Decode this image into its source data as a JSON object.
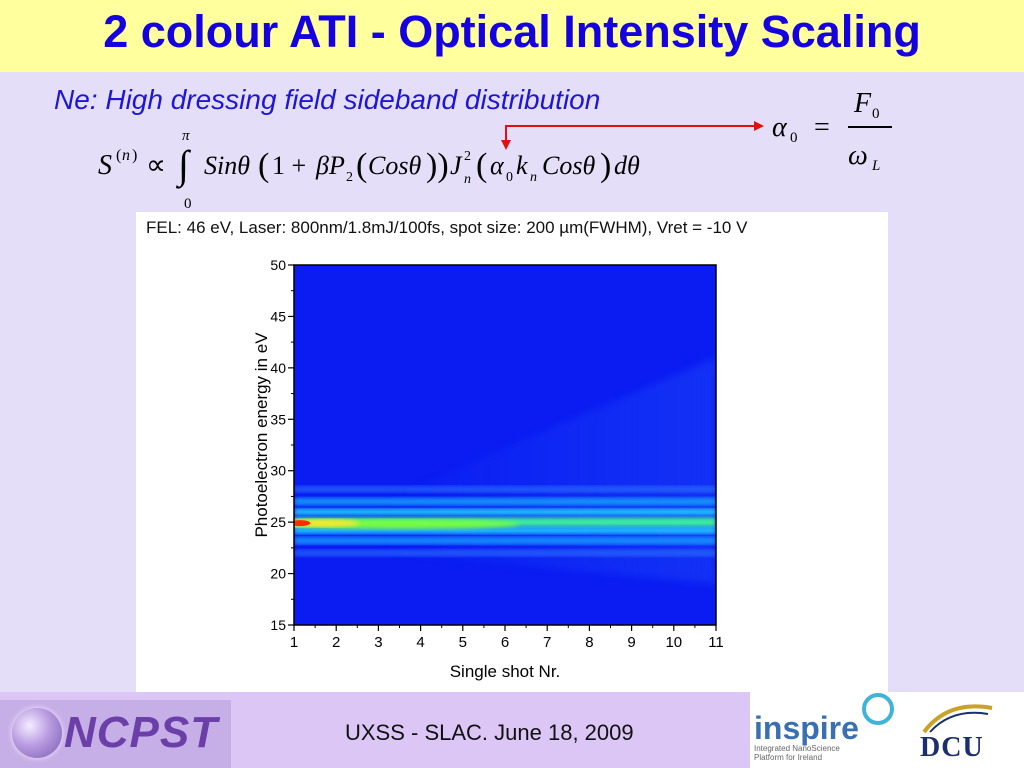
{
  "slide": {
    "title": "2 colour ATI - Optical Intensity Scaling",
    "subtitle": "Ne: High dressing field sideband distribution",
    "formula_main": "S^(n) ∝ ∫_0^π Sinθ(1 + βP_2(Cosθ)) J_n^2(α_0 k_n Cosθ) dθ",
    "formula_alpha": "α_0 = F_0 / ω_L",
    "footer": "UXSS - SLAC. June 18, 2009",
    "ncpst_logo": "NCPST",
    "inspire_logo": "inspire",
    "inspire_tagline": "Integrated NanoScience Platform for Ireland",
    "dcu_logo": "DCU",
    "colors": {
      "title": "#1400e0",
      "title_bar": "#ffff9e",
      "background": "#e5def9",
      "arrow": "#e01010"
    }
  },
  "chart_data": {
    "type": "heatmap",
    "caption": "FEL: 46 eV, Laser: 800nm/1.8mJ/100fs, spot size: 200 µm(FWHM), Vret = -10 V",
    "xlabel": "Single shot Nr.",
    "ylabel": "Photoelectron energy in eV",
    "xlim": [
      1,
      11
    ],
    "ylim": [
      15,
      50
    ],
    "xticks": [
      1,
      2,
      3,
      4,
      5,
      6,
      7,
      8,
      9,
      10,
      11
    ],
    "yticks": [
      15,
      20,
      25,
      30,
      35,
      40,
      45,
      50
    ],
    "colormap": "jet",
    "description_peaks": [
      {
        "energy": 25,
        "x_range": [
          1,
          11
        ],
        "intensity": "max near shot 1, decaying"
      },
      {
        "energy": 26.5,
        "x_range": [
          1,
          11
        ],
        "intensity": "medium"
      },
      {
        "energy": 23.5,
        "x_range": [
          1,
          11
        ],
        "intensity": "medium"
      },
      {
        "energy": 28,
        "x_range": [
          1,
          11
        ],
        "intensity": "weak"
      },
      {
        "energy": 22,
        "x_range": [
          1,
          11
        ],
        "intensity": "weak"
      }
    ]
  }
}
